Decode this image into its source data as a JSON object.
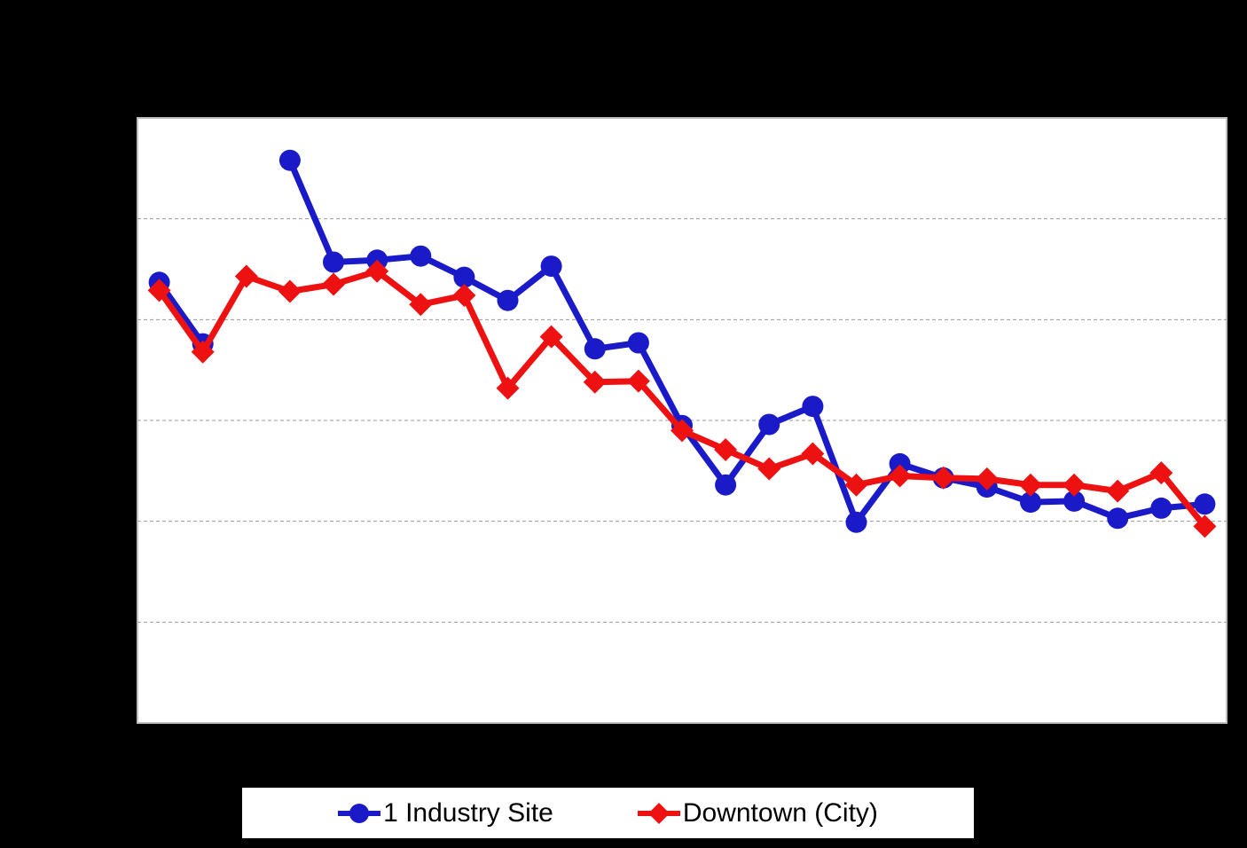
{
  "window": {
    "background_color": "#000000"
  },
  "chart": {
    "plot": {
      "fill": "#ffffff",
      "border_color": "#c0c0c0",
      "gridline_color": "#999999",
      "gridline_style": "dashed"
    },
    "chart_data": {
      "type": "line",
      "x": [
        1,
        2,
        3,
        4,
        5,
        6,
        7,
        8,
        9,
        10,
        11,
        12,
        13,
        14,
        15,
        16,
        17,
        18,
        19,
        20,
        21,
        22,
        23,
        24,
        25
      ],
      "series": [
        {
          "name": "1 Industry Site",
          "color": "#1a1ac8",
          "marker": "circle",
          "values": [
            4.37,
            3.76,
            null,
            5.58,
            4.57,
            4.59,
            4.63,
            4.42,
            4.19,
            4.53,
            3.71,
            3.77,
            2.95,
            2.36,
            2.96,
            3.14,
            1.99,
            2.57,
            2.43,
            2.34,
            2.19,
            2.2,
            2.03,
            2.13,
            2.17
          ]
        },
        {
          "name": "Downtown (City)",
          "color": "#ee1111",
          "marker": "diamond",
          "values": [
            4.29,
            3.68,
            4.43,
            4.28,
            4.35,
            4.48,
            4.15,
            4.24,
            3.32,
            3.83,
            3.38,
            3.39,
            2.9,
            2.71,
            2.52,
            2.67,
            2.36,
            2.45,
            2.43,
            2.42,
            2.36,
            2.36,
            2.3,
            2.48,
            1.95
          ]
        }
      ],
      "title": "",
      "xlabel": "",
      "ylabel": "",
      "ylim": [
        0,
        6
      ],
      "y_gridline_interval": 1,
      "grid": true,
      "legend_position": "bottom"
    }
  }
}
